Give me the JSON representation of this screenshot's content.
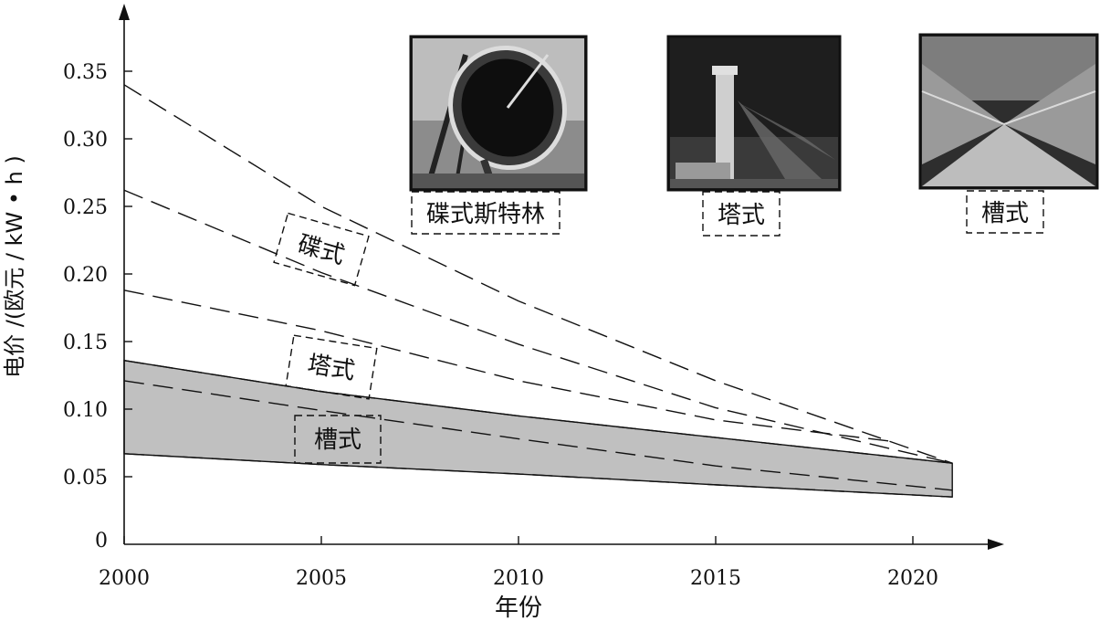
{
  "chart_data": {
    "type": "area",
    "xlabel": "年份",
    "ylabel": "电价 /(欧元 / kW • h )",
    "xlim": [
      2000,
      2022
    ],
    "ylim": [
      0,
      0.38
    ],
    "x_ticks": [
      "2000",
      "2005",
      "2010",
      "2015",
      "2020"
    ],
    "y_ticks": [
      "0",
      "0.05",
      "0.10",
      "0.15",
      "0.20",
      "0.25",
      "0.30",
      "0.35"
    ],
    "x_tick_values": [
      2000,
      2005,
      2010,
      2015,
      2020
    ],
    "y_tick_values": [
      0,
      0.05,
      0.1,
      0.15,
      0.2,
      0.25,
      0.3,
      0.35
    ],
    "series": [
      {
        "name": "碟式",
        "style": "dashed",
        "lower": {
          "x": [
            2000,
            2005,
            2010,
            2015,
            2021
          ],
          "y": [
            0.262,
            0.201,
            0.148,
            0.101,
            0.06
          ]
        },
        "upper": {
          "x": [
            2000,
            2005,
            2010,
            2015,
            2021
          ],
          "y": [
            0.34,
            0.25,
            0.18,
            0.121,
            0.06
          ]
        }
      },
      {
        "name": "塔式",
        "style": "dashed",
        "lower": {
          "x": [
            2000,
            2005,
            2010,
            2015,
            2021
          ],
          "y": [
            0.121,
            0.099,
            0.078,
            0.058,
            0.04
          ]
        },
        "upper": {
          "x": [
            2000,
            2005,
            2010,
            2015,
            2019.5
          ],
          "y": [
            0.188,
            0.158,
            0.121,
            0.092,
            0.076
          ]
        }
      },
      {
        "name": "槽式",
        "style": "filled",
        "lower": {
          "x": [
            2000,
            2005,
            2010,
            2015,
            2021
          ],
          "y": [
            0.067,
            0.059,
            0.052,
            0.044,
            0.035
          ]
        },
        "upper": {
          "x": [
            2000,
            2005,
            2010,
            2015,
            2021
          ],
          "y": [
            0.136,
            0.113,
            0.095,
            0.079,
            0.06
          ]
        }
      }
    ],
    "labels": [
      "碟式",
      "塔式",
      "槽式"
    ],
    "images": [
      "碟式斯特林",
      "塔式",
      "槽式"
    ]
  },
  "colors": {
    "fill": "#c0c0c0",
    "ink": "#111111",
    "photo_dark": "#1e1e1e"
  }
}
